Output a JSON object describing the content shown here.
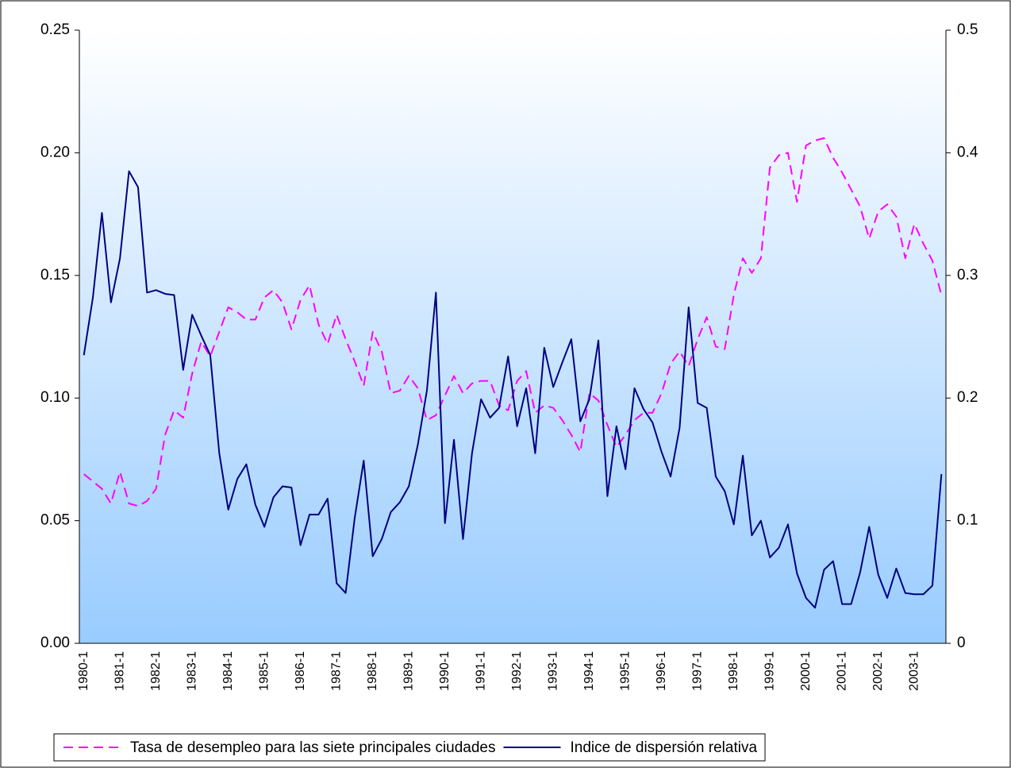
{
  "chart_data": {
    "type": "line",
    "categories": [
      "1980-1",
      null,
      null,
      null,
      "1981-1",
      null,
      null,
      null,
      "1982-1",
      null,
      null,
      null,
      "1983-1",
      null,
      null,
      null,
      "1984-1",
      null,
      null,
      null,
      "1985-1",
      null,
      null,
      null,
      "1986-1",
      null,
      null,
      null,
      "1987-1",
      null,
      null,
      null,
      "1988-1",
      null,
      null,
      null,
      "1989-1",
      null,
      null,
      null,
      "1990-1",
      null,
      null,
      null,
      "1991-1",
      null,
      null,
      null,
      "1992-1",
      null,
      null,
      null,
      "1993-1",
      null,
      null,
      null,
      "1994-1",
      null,
      null,
      null,
      "1995-1",
      null,
      null,
      null,
      "1996-1",
      null,
      null,
      null,
      "1997-1",
      null,
      null,
      null,
      "1998-1",
      null,
      null,
      null,
      "1999-1",
      null,
      null,
      null,
      "2000-1",
      null,
      null,
      null,
      "2001-1",
      null,
      null,
      null,
      "2002-1",
      null,
      null,
      null,
      "2003-1",
      null,
      null,
      null
    ],
    "series": [
      {
        "name": "Tasa de desempleo para las siete principales ciudades",
        "color": "#ff00ff",
        "style": "dashed",
        "axis": "y",
        "values": [
          0.069,
          0.066,
          0.063,
          0.057,
          0.07,
          0.057,
          0.056,
          0.058,
          0.063,
          0.085,
          0.095,
          0.092,
          0.11,
          0.123,
          0.117,
          0.127,
          0.137,
          0.135,
          0.132,
          0.132,
          0.141,
          0.144,
          0.139,
          0.128,
          0.14,
          0.146,
          0.13,
          0.122,
          0.134,
          0.124,
          0.115,
          0.105,
          0.127,
          0.119,
          0.102,
          0.103,
          0.109,
          0.104,
          0.091,
          0.093,
          0.101,
          0.109,
          0.102,
          0.106,
          0.107,
          0.107,
          0.097,
          0.095,
          0.107,
          0.111,
          0.094,
          0.097,
          0.096,
          0.091,
          0.085,
          0.078,
          0.102,
          0.099,
          0.089,
          0.08,
          0.085,
          0.091,
          0.094,
          0.094,
          0.102,
          0.114,
          0.119,
          0.113,
          0.124,
          0.133,
          0.121,
          0.12,
          0.142,
          0.157,
          0.151,
          0.157,
          0.194,
          0.199,
          0.2,
          0.18,
          0.203,
          0.205,
          0.206,
          0.198,
          0.192,
          0.185,
          0.178,
          0.165,
          0.176,
          0.179,
          0.174,
          0.157,
          0.171,
          0.163,
          0.156,
          0.142
        ]
      },
      {
        "name": "Indice de dispersión relativa",
        "color": "#000080",
        "style": "solid",
        "axis": "y2",
        "values": [
          0.235,
          0.282,
          0.351,
          0.278,
          0.314,
          0.385,
          0.372,
          0.286,
          0.288,
          0.285,
          0.284,
          0.223,
          0.268,
          0.251,
          0.235,
          0.155,
          0.109,
          0.134,
          0.146,
          0.113,
          0.095,
          0.119,
          0.128,
          0.127,
          0.08,
          0.105,
          0.105,
          0.118,
          0.049,
          0.041,
          0.102,
          0.149,
          0.071,
          0.085,
          0.107,
          0.115,
          0.128,
          0.162,
          0.206,
          0.286,
          0.098,
          0.166,
          0.085,
          0.155,
          0.199,
          0.184,
          0.192,
          0.234,
          0.177,
          0.208,
          0.155,
          0.241,
          0.209,
          0.229,
          0.248,
          0.181,
          0.199,
          0.247,
          0.12,
          0.177,
          0.142,
          0.208,
          0.191,
          0.18,
          0.156,
          0.136,
          0.176,
          0.274,
          0.196,
          0.192,
          0.136,
          0.124,
          0.097,
          0.153,
          0.088,
          0.1,
          0.07,
          0.078,
          0.097,
          0.057,
          0.037,
          0.029,
          0.06,
          0.067,
          0.032,
          0.032,
          0.058,
          0.095,
          0.056,
          0.037,
          0.061,
          0.041,
          0.04,
          0.04,
          0.047,
          0.138
        ]
      }
    ],
    "ylim": [
      0,
      0.25
    ],
    "yticks": [
      {
        "value": 0,
        "label": "0.00"
      },
      {
        "value": 0.05,
        "label": "0.05"
      },
      {
        "value": 0.1,
        "label": "0.10"
      },
      {
        "value": 0.15,
        "label": "0.15"
      },
      {
        "value": 0.2,
        "label": "0.20"
      },
      {
        "value": 0.25,
        "label": "0.25"
      }
    ],
    "y2lim": [
      0,
      0.5
    ],
    "y2ticks": [
      0,
      0.1,
      0.2,
      0.3,
      0.4,
      0.5
    ],
    "legend": "bottom"
  }
}
